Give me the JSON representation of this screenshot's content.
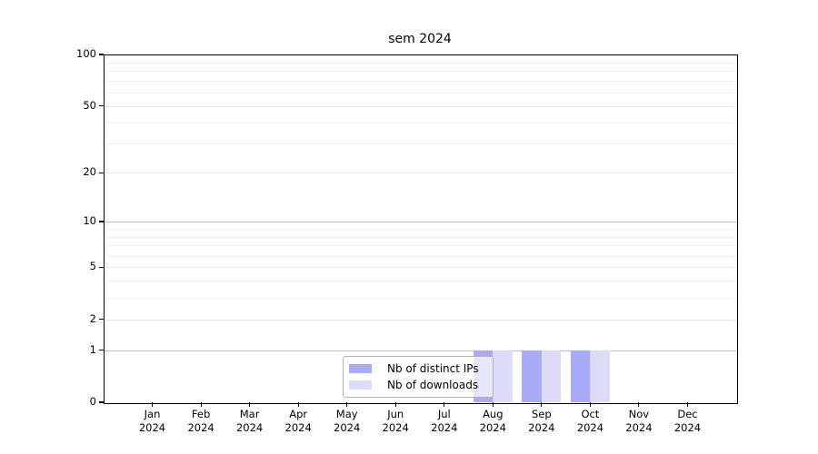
{
  "title": "sem 2024",
  "colors": {
    "distinct_ips": "#a9aaf5",
    "downloads": "#dcdcf8",
    "grid_power10": "#bdbdbd",
    "grid_major": "#e7e7e7",
    "grid_minor": "#f0f0f0",
    "axis": "#000000",
    "legend_border": "#b3b3b3"
  },
  "chart_data": {
    "type": "bar",
    "title": "sem 2024",
    "xlabel": "",
    "ylabel": "",
    "ylim": [
      0,
      100
    ],
    "y_scale": "log10(1+y)",
    "grid": "horizontal",
    "legend_position": "lower-center",
    "categories": [
      {
        "month": "Jan",
        "year": "2024"
      },
      {
        "month": "Feb",
        "year": "2024"
      },
      {
        "month": "Mar",
        "year": "2024"
      },
      {
        "month": "Apr",
        "year": "2024"
      },
      {
        "month": "May",
        "year": "2024"
      },
      {
        "month": "Jun",
        "year": "2024"
      },
      {
        "month": "Jul",
        "year": "2024"
      },
      {
        "month": "Aug",
        "year": "2024"
      },
      {
        "month": "Sep",
        "year": "2024"
      },
      {
        "month": "Oct",
        "year": "2024"
      },
      {
        "month": "Nov",
        "year": "2024"
      },
      {
        "month": "Dec",
        "year": "2024"
      }
    ],
    "series": [
      {
        "name": "Nb of distinct IPs",
        "color_key": "distinct_ips",
        "values": [
          0,
          0,
          0,
          0,
          0,
          0,
          0,
          1,
          1,
          1,
          0,
          0
        ]
      },
      {
        "name": "Nb of downloads",
        "color_key": "downloads",
        "values": [
          0,
          0,
          0,
          0,
          0,
          0,
          0,
          1,
          1,
          1,
          0,
          0
        ]
      }
    ],
    "y_ticks_major": [
      0,
      1,
      2,
      5,
      10,
      20,
      50,
      100
    ],
    "y_gridlines_minor": [
      3,
      4,
      6,
      7,
      8,
      9,
      30,
      40,
      60,
      70,
      80,
      90
    ]
  }
}
